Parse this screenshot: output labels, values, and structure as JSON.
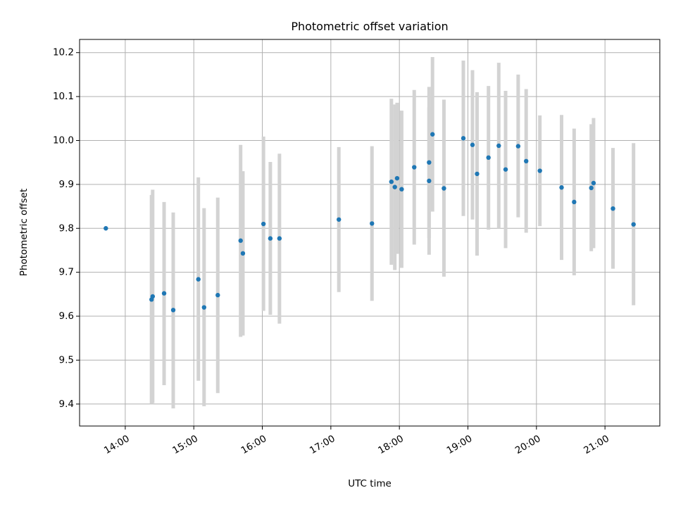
{
  "chart_data": {
    "type": "scatter",
    "title": "Photometric offset variation",
    "xlabel": "UTC time",
    "ylabel": "Photometric offset",
    "x_ticks": [
      "14:00",
      "15:00",
      "16:00",
      "17:00",
      "18:00",
      "19:00",
      "20:00",
      "21:00"
    ],
    "y_ticks": [
      "9.4",
      "9.5",
      "9.6",
      "9.7",
      "9.8",
      "9.9",
      "10.0",
      "10.1",
      "10.2"
    ],
    "xlim": [
      "13:20",
      "21:48"
    ],
    "ylim": [
      9.35,
      10.23
    ],
    "grid": true,
    "colors": {
      "points": "#1f77b4",
      "errorbars": "#d3d3d3",
      "grid": "#b0b0b0"
    },
    "points": [
      {
        "x": "13:43",
        "y": 9.8,
        "ylow": null,
        "yhigh": null
      },
      {
        "x": "14:23",
        "y": 9.638,
        "ylow": 9.4,
        "yhigh": 9.876
      },
      {
        "x": "14:24",
        "y": 9.645,
        "ylow": 9.402,
        "yhigh": 9.888
      },
      {
        "x": "14:34",
        "y": 9.652,
        "ylow": 9.443,
        "yhigh": 9.86
      },
      {
        "x": "14:42",
        "y": 9.614,
        "ylow": 9.39,
        "yhigh": 9.836
      },
      {
        "x": "15:04",
        "y": 9.684,
        "ylow": 9.453,
        "yhigh": 9.916
      },
      {
        "x": "15:09",
        "y": 9.62,
        "ylow": 9.395,
        "yhigh": 9.846
      },
      {
        "x": "15:21",
        "y": 9.648,
        "ylow": 9.425,
        "yhigh": 9.87
      },
      {
        "x": "15:41",
        "y": 9.772,
        "ylow": 9.553,
        "yhigh": 9.99
      },
      {
        "x": "15:43",
        "y": 9.743,
        "ylow": 9.556,
        "yhigh": 9.93
      },
      {
        "x": "16:01",
        "y": 9.81,
        "ylow": 9.612,
        "yhigh": 10.009
      },
      {
        "x": "16:07",
        "y": 9.777,
        "ylow": 9.603,
        "yhigh": 9.951
      },
      {
        "x": "16:15",
        "y": 9.777,
        "ylow": 9.583,
        "yhigh": 9.97
      },
      {
        "x": "17:07",
        "y": 9.82,
        "ylow": 9.655,
        "yhigh": 9.985
      },
      {
        "x": "17:36",
        "y": 9.811,
        "ylow": 9.635,
        "yhigh": 9.987
      },
      {
        "x": "17:53",
        "y": 9.906,
        "ylow": 9.717,
        "yhigh": 10.095
      },
      {
        "x": "17:56",
        "y": 9.894,
        "ylow": 9.705,
        "yhigh": 10.082
      },
      {
        "x": "17:58",
        "y": 9.914,
        "ylow": 9.742,
        "yhigh": 10.086
      },
      {
        "x": "18:02",
        "y": 9.889,
        "ylow": 9.71,
        "yhigh": 10.068
      },
      {
        "x": "18:13",
        "y": 9.939,
        "ylow": 9.763,
        "yhigh": 10.115
      },
      {
        "x": "18:26",
        "y": 9.95,
        "ylow": 9.778,
        "yhigh": 10.122
      },
      {
        "x": "18:26",
        "y": 9.908,
        "ylow": 9.74,
        "yhigh": 10.076
      },
      {
        "x": "18:29",
        "y": 10.014,
        "ylow": 9.838,
        "yhigh": 10.19
      },
      {
        "x": "18:39",
        "y": 9.891,
        "ylow": 9.69,
        "yhigh": 10.093
      },
      {
        "x": "18:56",
        "y": 10.005,
        "ylow": 9.828,
        "yhigh": 10.182
      },
      {
        "x": "19:04",
        "y": 9.99,
        "ylow": 9.82,
        "yhigh": 10.16
      },
      {
        "x": "19:08",
        "y": 9.924,
        "ylow": 9.738,
        "yhigh": 10.11
      },
      {
        "x": "19:18",
        "y": 9.961,
        "ylow": 9.797,
        "yhigh": 10.124
      },
      {
        "x": "19:27",
        "y": 9.988,
        "ylow": 9.8,
        "yhigh": 10.177
      },
      {
        "x": "19:33",
        "y": 9.934,
        "ylow": 9.755,
        "yhigh": 10.113
      },
      {
        "x": "19:44",
        "y": 9.987,
        "ylow": 9.825,
        "yhigh": 10.15
      },
      {
        "x": "19:51",
        "y": 9.953,
        "ylow": 9.79,
        "yhigh": 10.117
      },
      {
        "x": "20:03",
        "y": 9.931,
        "ylow": 9.805,
        "yhigh": 10.057
      },
      {
        "x": "20:22",
        "y": 9.893,
        "ylow": 9.728,
        "yhigh": 10.058
      },
      {
        "x": "20:33",
        "y": 9.86,
        "ylow": 9.693,
        "yhigh": 10.027
      },
      {
        "x": "20:48",
        "y": 9.892,
        "ylow": 9.748,
        "yhigh": 10.037
      },
      {
        "x": "20:50",
        "y": 9.903,
        "ylow": 9.755,
        "yhigh": 10.051
      },
      {
        "x": "21:07",
        "y": 9.845,
        "ylow": 9.708,
        "yhigh": 9.983
      },
      {
        "x": "21:25",
        "y": 9.809,
        "ylow": 9.625,
        "yhigh": 9.994
      }
    ]
  }
}
